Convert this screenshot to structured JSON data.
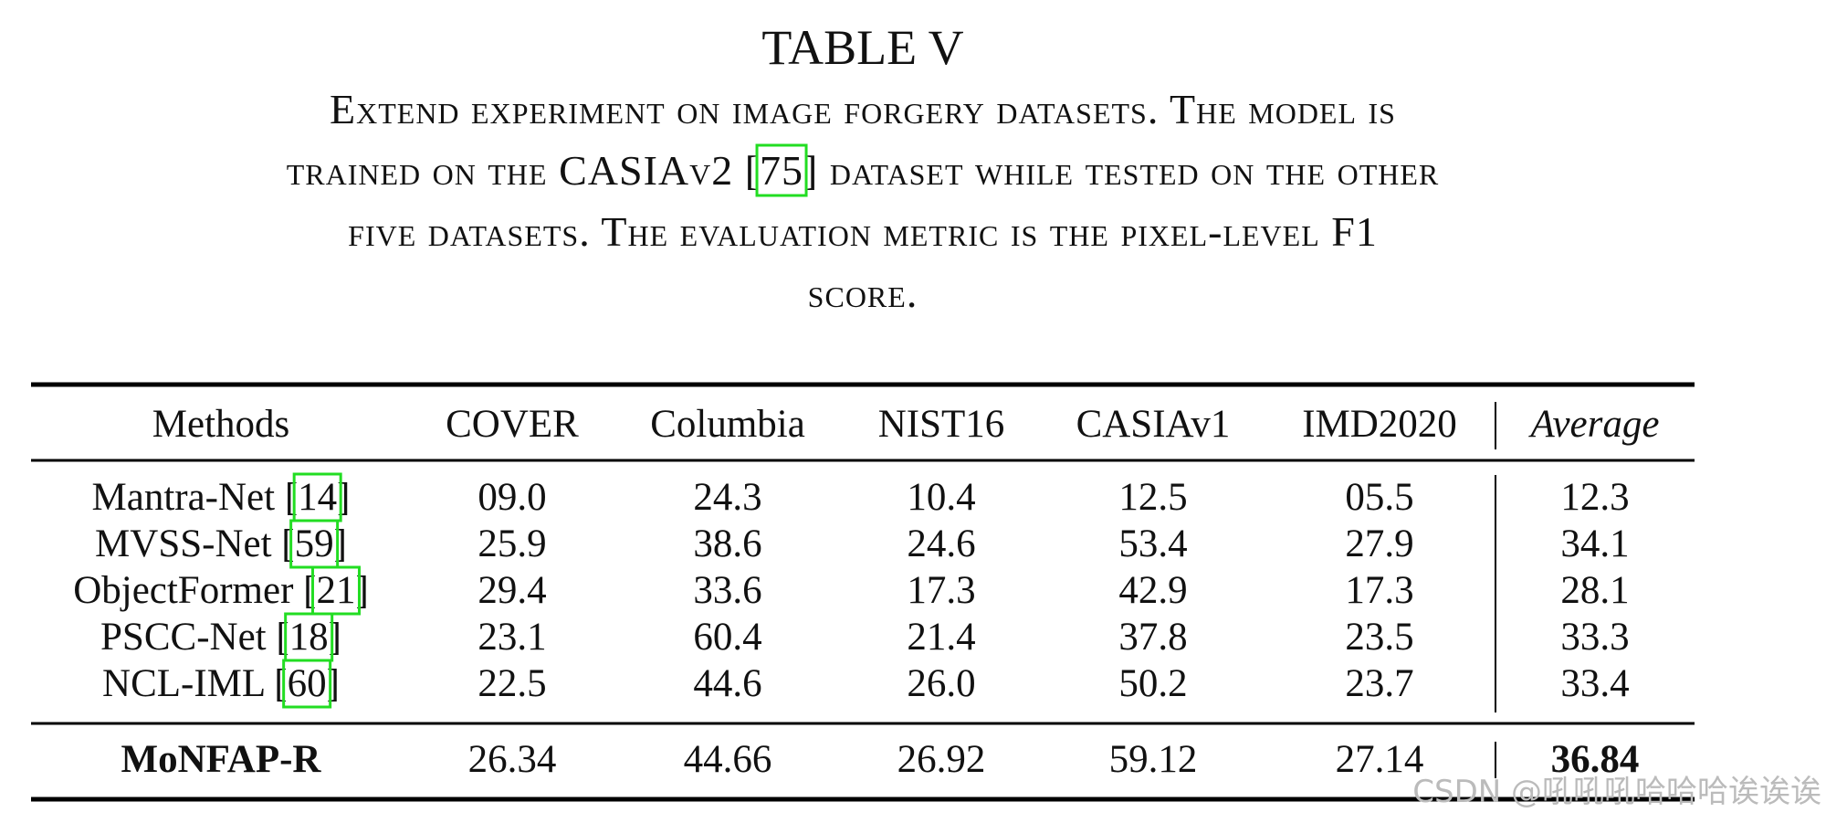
{
  "title": "TABLE V",
  "caption": {
    "line1": "Extend experiment on image forgery datasets. The model is",
    "line2_before": "trained on the CASIAv2 [",
    "ref": "75",
    "line2_after": "] dataset while tested on the other",
    "line3": "five datasets. The evaluation metric is the pixel-level F1",
    "line4": "score."
  },
  "table": {
    "header": [
      "Methods",
      "COVER",
      "Columbia",
      "NIST16",
      "CASIAv1",
      "IMD2020",
      "Average"
    ],
    "rows": [
      {
        "method": "Mantra-Net [",
        "ref": "14",
        "close": "]",
        "values": [
          "09.0",
          "24.3",
          "10.4",
          "12.5",
          "05.5",
          "12.3"
        ]
      },
      {
        "method": "MVSS-Net [",
        "ref": "59",
        "close": "]",
        "values": [
          "25.9",
          "38.6",
          "24.6",
          "53.4",
          "27.9",
          "34.1"
        ]
      },
      {
        "method": "ObjectFormer [",
        "ref": "21",
        "close": "]",
        "values": [
          "29.4",
          "33.6",
          "17.3",
          "42.9",
          "17.3",
          "28.1"
        ]
      },
      {
        "method": "PSCC-Net [",
        "ref": "18",
        "close": "]",
        "values": [
          "23.1",
          "60.4",
          "21.4",
          "37.8",
          "23.5",
          "33.3"
        ]
      },
      {
        "method": "NCL-IML [",
        "ref": "60",
        "close": "]",
        "values": [
          "22.5",
          "44.6",
          "26.0",
          "50.2",
          "23.7",
          "33.4"
        ]
      }
    ],
    "final": {
      "method": "MoNFAP-R",
      "values": [
        "26.34",
        "44.66",
        "26.92",
        "59.12",
        "27.14",
        "36.84"
      ]
    }
  },
  "watermark": "CSDN @吼吼吼哈哈哈诶诶诶"
}
